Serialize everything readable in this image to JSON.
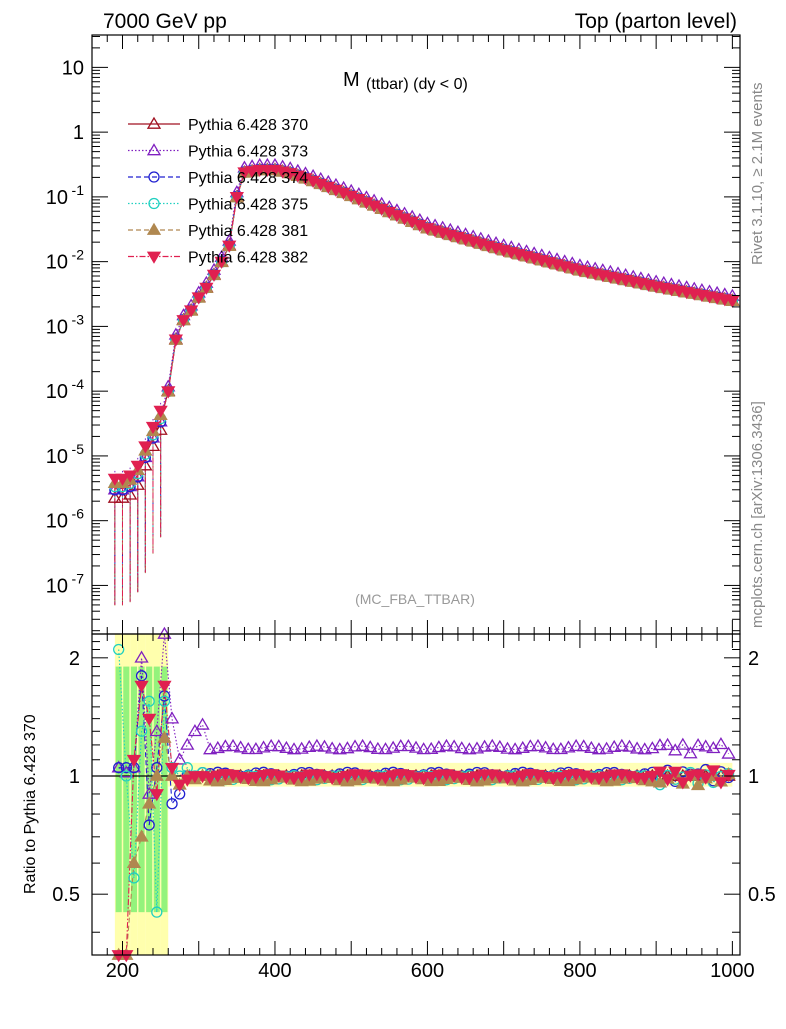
{
  "header": {
    "left": "7000 GeV pp",
    "right": "Top (parton level)"
  },
  "side_labels": {
    "rivet": "Rivet 3.1.10, ≥ 2.1M events",
    "mcplots": "mcplots.cern.ch [arXiv:1306.3436]"
  },
  "plot_title": {
    "main": "M",
    "sub": "(ttbar) (dy < 0)"
  },
  "analysis_tag": "(MC_FBA_TTBAR)",
  "ratio_ylabel": "Ratio to Pythia 6.428 370",
  "legend": [
    {
      "label": "Pythia 6.428 370",
      "color": "#a01020",
      "marker": "triangle-up-open",
      "dash": "solid"
    },
    {
      "label": "Pythia 6.428 373",
      "color": "#8020c0",
      "marker": "triangle-up-open",
      "dash": "dotted"
    },
    {
      "label": "Pythia 6.428 374",
      "color": "#2020d0",
      "marker": "circle-open",
      "dash": "dashed"
    },
    {
      "label": "Pythia 6.428 375",
      "color": "#20d0c0",
      "marker": "circle-open",
      "dash": "dotted"
    },
    {
      "label": "Pythia 6.428 381",
      "color": "#b08850",
      "marker": "triangle-up-filled",
      "dash": "dashed"
    },
    {
      "label": "Pythia 6.428 382",
      "color": "#e02050",
      "marker": "triangle-down-filled",
      "dash": "dashdot"
    }
  ],
  "axes": {
    "main_y_ticks": [
      {
        "sup": "-7",
        "v": -7
      },
      {
        "sup": "-6",
        "v": -6
      },
      {
        "sup": "-5",
        "v": -5
      },
      {
        "sup": "-4",
        "v": -4
      },
      {
        "sup": "-3",
        "v": -3
      },
      {
        "sup": "-2",
        "v": -2
      },
      {
        "sup": "-1",
        "v": -1
      },
      {
        "label": "1",
        "v": 0
      },
      {
        "label": "10",
        "v": 1
      }
    ],
    "ratio_y_ticks": [
      {
        "label": "0.5",
        "v": 0.5
      },
      {
        "label": "1",
        "v": 1
      },
      {
        "label": "2",
        "v": 2
      }
    ],
    "x_ticks": [
      {
        "label": "200",
        "v": 200
      },
      {
        "label": "400",
        "v": 400
      },
      {
        "label": "600",
        "v": 600
      },
      {
        "label": "800",
        "v": 800
      },
      {
        "label": "1000",
        "v": 1000
      }
    ]
  },
  "chart_data": {
    "type": "line",
    "x_range": [
      160,
      1010
    ],
    "main_y_log_range": [
      -7.75,
      1.5
    ],
    "ratio_y_range": [
      0.35,
      2.3
    ],
    "main_y_scale": "log",
    "ratio_y_scale": "log",
    "reference_curve": {
      "x": [
        190,
        200,
        210,
        220,
        230,
        240,
        250,
        255,
        260,
        265,
        270,
        280,
        290,
        300,
        310,
        320,
        330,
        340,
        350,
        355,
        360,
        380,
        400,
        420,
        450,
        500,
        600,
        700,
        800,
        900,
        1000
      ],
      "log10_y": [
        -5.5,
        -5.5,
        -5.45,
        -5.3,
        -5.0,
        -4.7,
        -4.45,
        -4.35,
        -4.0,
        -3.7,
        -3.2,
        -2.9,
        -2.75,
        -2.55,
        -2.4,
        -2.2,
        -2.0,
        -1.75,
        -1.0,
        -0.75,
        -0.62,
        -0.58,
        -0.58,
        -0.63,
        -0.75,
        -0.98,
        -1.48,
        -1.82,
        -2.13,
        -2.38,
        -2.6
      ]
    },
    "series_offsets": [
      {
        "name": "Pythia 6.428 370",
        "main_shift": 0.0,
        "ratio": 1.0
      },
      {
        "name": "Pythia 6.428 373",
        "main_shift": 0.07,
        "ratio": 1.18
      },
      {
        "name": "Pythia 6.428 374",
        "main_shift": 0.005,
        "ratio": 1.01
      },
      {
        "name": "Pythia 6.428 375",
        "main_shift": -0.005,
        "ratio": 0.99
      },
      {
        "name": "Pythia 6.428 381",
        "main_shift": -0.01,
        "ratio": 0.98
      },
      {
        "name": "Pythia 6.428 382",
        "main_shift": 0.0,
        "ratio": 1.0
      }
    ],
    "low_mass_ratio_values": {
      "x": [
        195,
        205,
        215,
        225,
        235,
        245,
        255,
        265,
        275,
        285,
        295,
        305
      ],
      "Pythia 6.428 373": [
        1.05,
        1.02,
        1.05,
        2.0,
        0.9,
        1.3,
        2.3,
        1.4,
        1.1,
        1.2,
        1.3,
        1.35
      ],
      "Pythia 6.428 374": [
        1.05,
        1.05,
        1.05,
        1.8,
        0.75,
        1.05,
        1.6,
        0.85,
        0.9,
        1.0,
        1.0,
        1.02
      ],
      "Pythia 6.428 375": [
        2.1,
        1.0,
        0.55,
        1.3,
        1.55,
        0.45,
        1.55,
        1.05,
        1.0,
        1.05,
        1.0,
        1.02
      ],
      "Pythia 6.428 381": [
        0.2,
        0.3,
        0.6,
        0.7,
        0.85,
        1.0,
        1.25,
        1.0,
        0.95,
        1.0,
        0.98,
        1.0
      ],
      "Pythia 6.428 382": [
        0.3,
        0.2,
        1.1,
        1.7,
        1.4,
        0.9,
        1.7,
        1.05,
        0.95,
        0.98,
        1.0,
        1.0
      ]
    }
  }
}
